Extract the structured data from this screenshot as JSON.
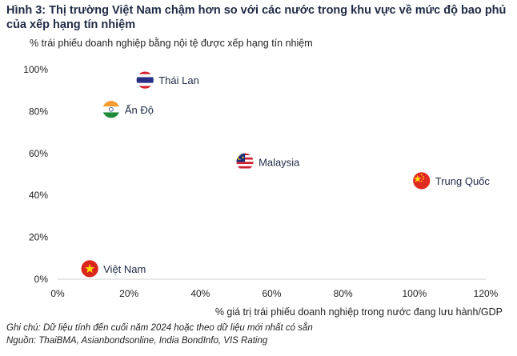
{
  "title": "Hình 3: Thị trường Việt Nam chậm hơn so với các nước trong khu vực về mức độ bao phủ của xếp hạng tín nhiệm",
  "chart_data": {
    "type": "scatter",
    "ylabel": "% trái phiếu doanh nghiệp bằng nội tệ được xếp hạng tín nhiệm",
    "xlabel": "% giá trị trái phiếu doanh nghiệp trong nước đang lưu hành/GDP",
    "xlim": [
      0,
      120
    ],
    "ylim": [
      0,
      100
    ],
    "xticks": [
      "0%",
      "20%",
      "40%",
      "60%",
      "80%",
      "100%",
      "120%"
    ],
    "yticks": [
      "0%",
      "20%",
      "40%",
      "60%",
      "80%",
      "100%"
    ],
    "grid": false,
    "points": [
      {
        "label": "Thái Lan",
        "flag": "thailand-flag",
        "x": 24.5,
        "y": 95
      },
      {
        "label": "Ấn Độ",
        "flag": "india-flag",
        "x": 15,
        "y": 81
      },
      {
        "label": "Malaysia",
        "flag": "malaysia-flag",
        "x": 52.5,
        "y": 56
      },
      {
        "label": "Trung Quốc",
        "flag": "china-flag",
        "x": 102,
        "y": 47
      },
      {
        "label": "Việt Nam",
        "flag": "vietnam-flag",
        "x": 9,
        "y": 5
      }
    ]
  },
  "notes": {
    "note": "Ghi chú: Dữ liệu tính đến cuối năm 2024 hoặc theo dữ liệu mới nhất có sẵn",
    "source": "Nguồn: ThaiBMA, Asianbondsonline, India BondInfo, VIS Rating"
  }
}
